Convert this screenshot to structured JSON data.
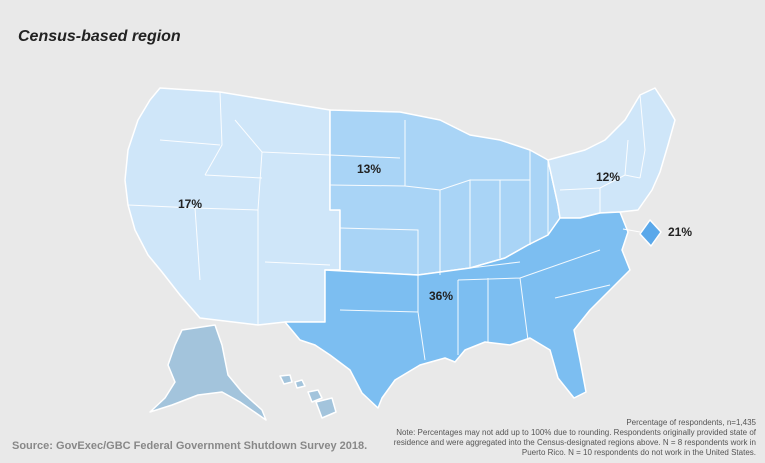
{
  "title": "Census-based region",
  "regions": [
    {
      "name": "West",
      "value": "17%",
      "color": "#cfe6f9"
    },
    {
      "name": "Midwest",
      "value": "13%",
      "color": "#a9d4f6"
    },
    {
      "name": "Northeast",
      "value": "12%",
      "color": "#cfe6f9"
    },
    {
      "name": "South",
      "value": "36%",
      "color": "#7cbef1"
    },
    {
      "name": "District of Columbia",
      "value": "21%",
      "color": "#5aa8ea"
    },
    {
      "name": "Alaska",
      "color": "#a3c4dc"
    },
    {
      "name": "Hawaii",
      "color": "#a3c4dc"
    }
  ],
  "footer": {
    "source": "Source: GovExec/GBC Federal Government Shutdown Survey 2018.",
    "n_line": "Percentage of respondents, n=1,435",
    "note": "Note: Percentages may not add up to 100% due to rounding. Respondents originally provided state of residence and were aggregated into the Census-designated regions above. N = 8 respondents work in Puerto Rico. N = 10 respondents do not work in the United States."
  }
}
